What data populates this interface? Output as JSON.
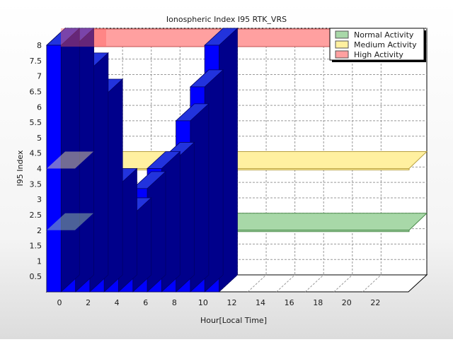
{
  "chart_data": {
    "type": "bar",
    "title": "Ionospheric Index I95 RTK_VRS",
    "xlabel": "Hour[Local Time]",
    "ylabel": "I95 Index",
    "x_ticks": [
      "0",
      "2",
      "4",
      "6",
      "8",
      "10",
      "12",
      "14",
      "16",
      "18",
      "20",
      "22"
    ],
    "y_ticks": [
      "0.5",
      "1",
      "1.5",
      "2",
      "2.5",
      "3",
      "3.5",
      "4",
      "4.5",
      "5",
      "5.5",
      "6",
      "6.5",
      "7",
      "7.5",
      "8"
    ],
    "ylim": [
      0,
      8
    ],
    "xlim": [
      0,
      24
    ],
    "bar_color": "#0000ff",
    "hours": [
      0,
      1,
      2,
      3,
      4,
      5,
      6,
      7,
      8,
      9,
      10,
      11
    ],
    "values": [
      8.0,
      8.0,
      7.2,
      6.35,
      3.45,
      2.5,
      3.35,
      4.0,
      4.3,
      5.55,
      6.65,
      8.0
    ],
    "bands": [
      {
        "name": "Normal Activity",
        "from": 0,
        "to": 2,
        "color": "#a8d8a8",
        "line": "#4a8a4a"
      },
      {
        "name": "Medium Activity",
        "from": 2,
        "to": 4,
        "color": "#fff0a0",
        "line": "#b8a040"
      },
      {
        "name": "High Activity",
        "from": 4,
        "to": 8,
        "color": "#ffa0a0",
        "line": "#c05050"
      }
    ],
    "legend_position": "top-right",
    "grid": true
  }
}
